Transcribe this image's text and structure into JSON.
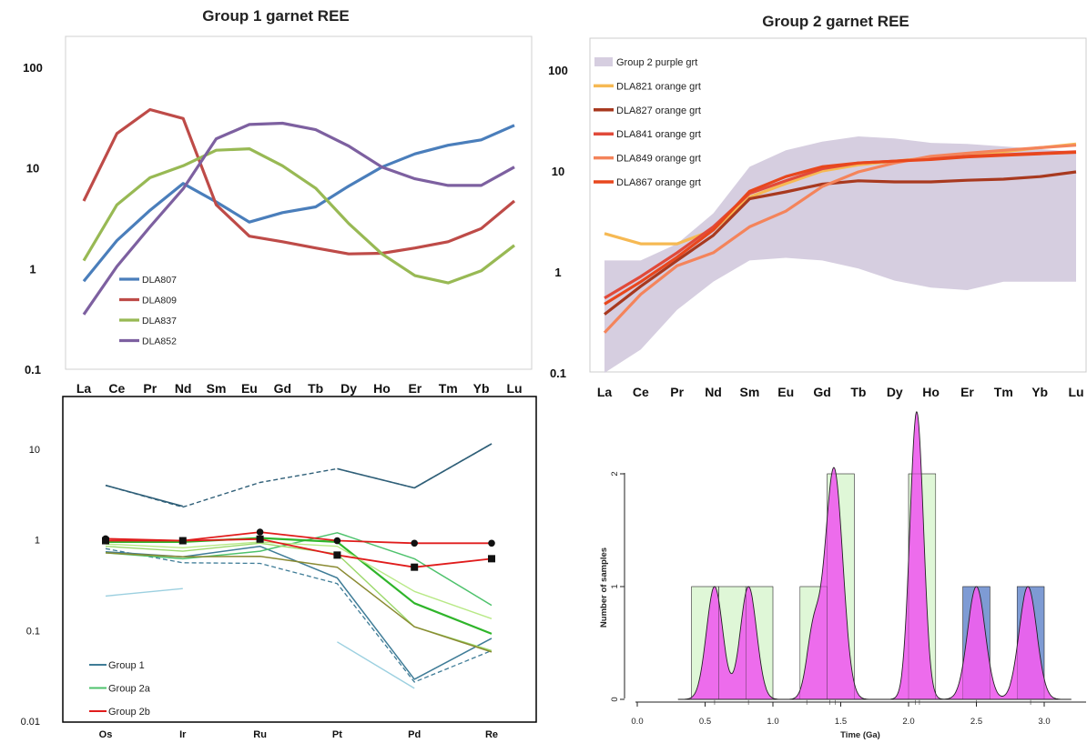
{
  "chart_data": [
    {
      "id": "p1",
      "type": "line",
      "title": "Group 1 garnet REE",
      "yscale": "log",
      "ylim": [
        0.1,
        100
      ],
      "yticks": [
        "0.1",
        "1",
        "10",
        "100"
      ],
      "categories": [
        "La",
        "Ce",
        "Pr",
        "Nd",
        "Sm",
        "Eu",
        "Gd",
        "Tb",
        "Dy",
        "Ho",
        "Er",
        "Tm",
        "Yb",
        "Lu"
      ],
      "legend_position": "lower-left inside",
      "series": [
        {
          "name": "DLA807",
          "color": "#4a7ebb",
          "values": [
            0.75,
            1.9,
            3.8,
            7.0,
            4.6,
            2.9,
            3.6,
            4.1,
            6.6,
            10.2,
            13.8,
            16.8,
            19.0,
            26.5
          ]
        },
        {
          "name": "DLA809",
          "color": "#be4b48",
          "values": [
            4.7,
            22.0,
            38.0,
            31.0,
            4.3,
            2.1,
            1.85,
            1.6,
            1.4,
            1.42,
            1.6,
            1.85,
            2.5,
            4.7
          ]
        },
        {
          "name": "DLA837",
          "color": "#98b954",
          "values": [
            1.2,
            4.3,
            8.0,
            10.5,
            15.0,
            15.5,
            10.5,
            6.3,
            2.8,
            1.4,
            0.85,
            0.72,
            0.95,
            1.7
          ]
        },
        {
          "name": "DLA852",
          "color": "#7d60a0",
          "values": [
            0.35,
            1.05,
            2.6,
            6.2,
            19.5,
            27.0,
            27.8,
            24.0,
            16.5,
            10.2,
            7.8,
            6.7,
            6.7,
            10.2
          ]
        }
      ]
    },
    {
      "id": "p2",
      "type": "line",
      "title": "Group 2 garnet REE",
      "yscale": "log",
      "ylim": [
        0.1,
        100
      ],
      "yticks": [
        "0.1",
        "1",
        "10",
        "100"
      ],
      "categories": [
        "La",
        "Ce",
        "Pr",
        "Nd",
        "Sm",
        "Eu",
        "Gd",
        "Tb",
        "Dy",
        "Ho",
        "Er",
        "Tm",
        "Yb",
        "Lu"
      ],
      "legend_position": "upper-left inside",
      "band": {
        "name": "Group 2 purple grt",
        "color": "#d6cee0",
        "upper": [
          1.3,
          1.3,
          1.9,
          3.8,
          11.0,
          16.0,
          19.5,
          22.0,
          21.0,
          19.0,
          18.5,
          17.5,
          16.5,
          15.5
        ],
        "lower": [
          0.09,
          0.17,
          0.42,
          0.8,
          1.3,
          1.38,
          1.3,
          1.08,
          0.82,
          0.7,
          0.66,
          0.8,
          0.8,
          0.8
        ]
      },
      "series": [
        {
          "name": "DLA821 orange grt",
          "color": "#f6b953",
          "values": [
            2.4,
            1.9,
            1.9,
            2.6,
            5.5,
            7.5,
            10.0,
            11.5,
            12.5,
            13.5,
            14.5,
            15.5,
            17.0,
            18.5
          ]
        },
        {
          "name": "DLA827 orange grt",
          "color": "#a8391f",
          "values": [
            0.38,
            0.72,
            1.3,
            2.3,
            5.3,
            6.2,
            7.4,
            8.0,
            7.8,
            7.8,
            8.1,
            8.3,
            8.8,
            9.8
          ]
        },
        {
          "name": "DLA841 orange grt",
          "color": "#e14a3a",
          "values": [
            0.55,
            0.9,
            1.55,
            2.8,
            6.0,
            8.0,
            10.5,
            12.0,
            12.5,
            13.3,
            14.0,
            14.5,
            15.0,
            15.5
          ]
        },
        {
          "name": "DLA849 orange grt",
          "color": "#f4845b",
          "values": [
            0.25,
            0.6,
            1.15,
            1.55,
            2.8,
            4.0,
            7.0,
            9.8,
            12.0,
            14.0,
            15.0,
            16.0,
            17.0,
            18.0
          ]
        },
        {
          "name": "DLA867 orange grt",
          "color": "#e8471d",
          "values": [
            0.48,
            0.8,
            1.4,
            2.6,
            6.3,
            8.8,
            11.0,
            12.0,
            12.5,
            13.0,
            13.8,
            14.3,
            14.8,
            15.3
          ]
        }
      ]
    },
    {
      "id": "p3",
      "type": "line",
      "yscale": "log",
      "ylim": [
        0.01,
        20
      ],
      "yticks": [
        "0.01",
        "0.1",
        "1",
        "10"
      ],
      "categories": [
        "Os",
        "Ir",
        "Ru",
        "Pt",
        "Pd",
        "Re"
      ],
      "legend_position": "lower-left inside",
      "legend": [
        {
          "name": "Group 1",
          "color": "#3f7c97"
        },
        {
          "name": "Group 2a",
          "color": "#4ec26c"
        },
        {
          "name": "Group 2b",
          "color": "#e01c1c"
        }
      ],
      "series": [
        {
          "color": "#2f5f78",
          "dash": false,
          "width": 1.6,
          "values": [
            4.0,
            2.35,
            null,
            6.1,
            3.75,
            11.5
          ]
        },
        {
          "color": "#2f5f78",
          "dash": true,
          "width": 1.4,
          "values": [
            4.0,
            2.3,
            4.3,
            6.1,
            3.75,
            11.5
          ]
        },
        {
          "color": "#3f7c97",
          "dash": false,
          "width": 1.5,
          "values": [
            0.74,
            0.65,
            0.85,
            0.38,
            0.029,
            0.082
          ]
        },
        {
          "color": "#3f7c97",
          "dash": true,
          "width": 1.3,
          "values": [
            0.8,
            0.56,
            0.55,
            0.33,
            0.027,
            0.06
          ]
        },
        {
          "color": "#9cd0e0",
          "dash": false,
          "width": 1.4,
          "values": [
            0.24,
            0.29,
            null,
            0.075,
            0.023,
            null
          ]
        },
        {
          "color": "#4ec26c",
          "dash": false,
          "width": 1.5,
          "values": [
            0.72,
            0.62,
            0.75,
            1.2,
            0.62,
            0.19
          ]
        },
        {
          "color": "#2fb52a",
          "dash": false,
          "width": 2.2,
          "values": [
            0.95,
            0.95,
            1.05,
            0.95,
            0.2,
            0.092
          ]
        },
        {
          "color": "#b8e986",
          "dash": false,
          "width": 1.4,
          "values": [
            0.9,
            0.82,
            0.95,
            0.85,
            0.27,
            0.135
          ]
        },
        {
          "color": "#9bd86a",
          "dash": false,
          "width": 1.4,
          "values": [
            0.85,
            0.75,
            0.92,
            0.7,
            0.11,
            0.06
          ]
        },
        {
          "color": "#8a8a32",
          "dash": false,
          "width": 1.5,
          "values": [
            0.72,
            0.65,
            0.66,
            0.5,
            0.11,
            0.058
          ]
        },
        {
          "color": "#e01c1c",
          "dash": false,
          "width": 1.8,
          "marker": "circle",
          "values": [
            1.03,
            0.98,
            1.22,
            0.98,
            0.92,
            0.92
          ]
        },
        {
          "color": "#e01c1c",
          "dash": false,
          "width": 1.8,
          "marker": "square",
          "values": [
            0.98,
            0.98,
            1.02,
            0.68,
            0.5,
            0.62
          ]
        }
      ]
    },
    {
      "id": "p4",
      "type": "bar",
      "xlabel": "Time (Ga)",
      "ylabel": "Number of samples",
      "xlim": [
        0.0,
        3.1
      ],
      "ylim": [
        0,
        2.5
      ],
      "xticks": [
        "0.0",
        "0.5",
        "1.0",
        "1.5",
        "2.0",
        "2.5",
        "3.0"
      ],
      "yticks": [
        "0",
        "1",
        "2"
      ],
      "bins": [
        {
          "start": 0.4,
          "end": 0.6,
          "count": 1,
          "color": "#dff7d7"
        },
        {
          "start": 0.6,
          "end": 0.8,
          "count": 1,
          "color": "#dff7d7"
        },
        {
          "start": 0.8,
          "end": 1.0,
          "count": 1,
          "color": "#dff7d7"
        },
        {
          "start": 1.2,
          "end": 1.4,
          "count": 1,
          "color": "#dff7d7"
        },
        {
          "start": 1.4,
          "end": 1.6,
          "count": 2,
          "color": "#dff7d7"
        },
        {
          "start": 2.0,
          "end": 2.2,
          "count": 2,
          "color": "#dff7d7"
        },
        {
          "start": 2.4,
          "end": 2.6,
          "count": 1,
          "color": "#7e9bd4"
        },
        {
          "start": 2.8,
          "end": 3.0,
          "count": 1,
          "color": "#7e9bd4"
        }
      ],
      "density": {
        "color": "#ee60ee",
        "peaks": [
          {
            "center": 0.57,
            "height": 1.0,
            "sigma": 0.06
          },
          {
            "center": 0.82,
            "height": 1.0,
            "sigma": 0.06
          },
          {
            "center": 1.3,
            "height": 0.6,
            "sigma": 0.05
          },
          {
            "center": 1.45,
            "height": 2.05,
            "sigma": 0.065
          },
          {
            "center": 2.06,
            "height": 2.55,
            "sigma": 0.05
          },
          {
            "center": 2.5,
            "height": 1.0,
            "sigma": 0.065
          },
          {
            "center": 2.88,
            "height": 1.0,
            "sigma": 0.065
          }
        ],
        "sample_ticks": [
          0.57,
          0.82,
          1.25,
          1.42,
          1.46,
          2.05,
          2.08,
          2.5,
          2.9
        ]
      }
    }
  ]
}
